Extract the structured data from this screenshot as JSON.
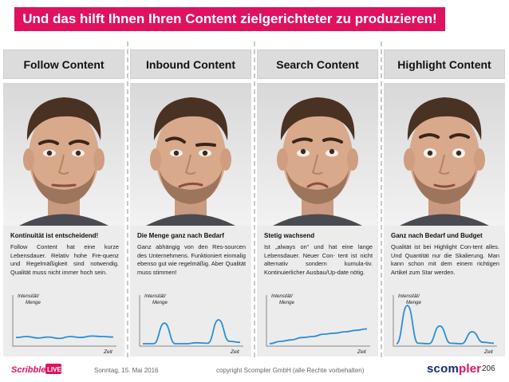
{
  "title": "Und das hilft Ihnen Ihren Content zielgerichteter zu produzieren!",
  "colors": {
    "accent": "#e0115f",
    "curve": "#2a8fd4",
    "header_bg": "#dcdcdc",
    "panel_bg": "#ececec",
    "brand_navy": "#1a2a6e"
  },
  "columns": [
    {
      "header": "Follow Content",
      "expression": "neutral",
      "heading": "Kontinuität ist entscheidend!",
      "body": "Follow Content hat eine kurze Lebensdauer. Relativ hohe Fre-quenz und Regelmäßigkeit sind notwendig. Qualität muss nicht immer hoch sein.",
      "chart": {
        "ylabel_line1": "Intensität/",
        "ylabel_line2": "Menge",
        "xlabel": "Zeit",
        "pattern": "flat-low-wave",
        "values": [
          0.18,
          0.2,
          0.17,
          0.19,
          0.16,
          0.2,
          0.18,
          0.21,
          0.2,
          0.19
        ]
      }
    },
    {
      "header": "Inbound Content",
      "expression": "skeptical",
      "heading": "Die Menge ganz nach Bedarf",
      "body": "Ganz abhängig von den Res-sourcen des Unternehmens. Funktioniert einmalig ebenso gut wie regelmäßig. Aber Qualität muss stimmen!",
      "chart": {
        "ylabel_line1": "Intensität/",
        "ylabel_line2": "Menge",
        "xlabel": "Zeit",
        "pattern": "two-small-peaks",
        "values": [
          0.05,
          0.05,
          0.48,
          0.05,
          0.05,
          0.07,
          0.06,
          0.55,
          0.1,
          0.08
        ]
      }
    },
    {
      "header": "Search Content",
      "expression": "thinking",
      "heading": "Stetig wachsend",
      "body": "Ist „always on“ und hat eine lange Lebensdauer. Neuer Con- tent ist nicht alternativ sondern kumula-tiv. Kontinuierlicher Ausbau/Up-date nötig.",
      "chart": {
        "ylabel_line1": "Intensität/",
        "ylabel_line2": "Menge",
        "xlabel": "Zeit",
        "pattern": "steady-growth",
        "values": [
          0.05,
          0.1,
          0.13,
          0.18,
          0.2,
          0.25,
          0.27,
          0.3,
          0.33,
          0.36
        ]
      }
    },
    {
      "header": "Highlight Content",
      "expression": "wide-eyed",
      "heading": "Ganz nach Bedarf und Budget",
      "body": "Qualität ist bei Highlight Con-tent alles. Und Quantität nur die Skalierung. Man kann schon mit dem einem richtigen Artikel zum Star werden.",
      "chart": {
        "ylabel_line1": "Intensität/",
        "ylabel_line2": "Menge",
        "xlabel": "Zeit",
        "pattern": "three-large-peaks",
        "values": [
          0.05,
          0.85,
          0.06,
          0.05,
          0.42,
          0.06,
          0.05,
          0.3,
          0.08,
          0.06
        ]
      }
    }
  ],
  "footer": {
    "date": "Sonntag, 15. Mai 2016",
    "copyright": "copyright Scompler GmbH (alle Rechte vorbehalten)",
    "brand_main": "scom",
    "brand_accent": "pler",
    "page_number": "206",
    "logo_left_word": "Scribble",
    "logo_left_tag": "LIVE"
  }
}
